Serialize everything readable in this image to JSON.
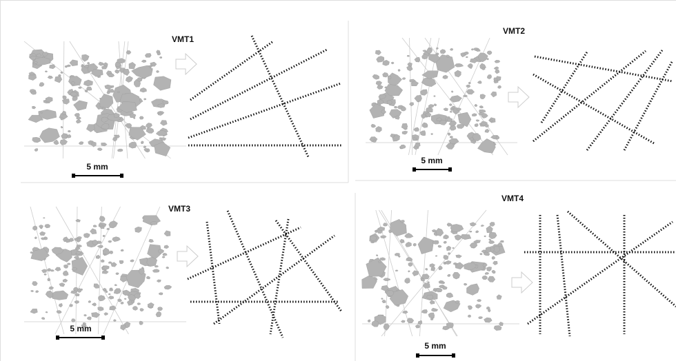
{
  "panels": [
    {
      "title": "VMT1",
      "scale_label": "5 mm"
    },
    {
      "title": "VMT2",
      "scale_label": "5 mm"
    },
    {
      "title": "VMT3",
      "scale_label": "5 mm"
    },
    {
      "title": "VMT4",
      "scale_label": "5 mm"
    }
  ]
}
